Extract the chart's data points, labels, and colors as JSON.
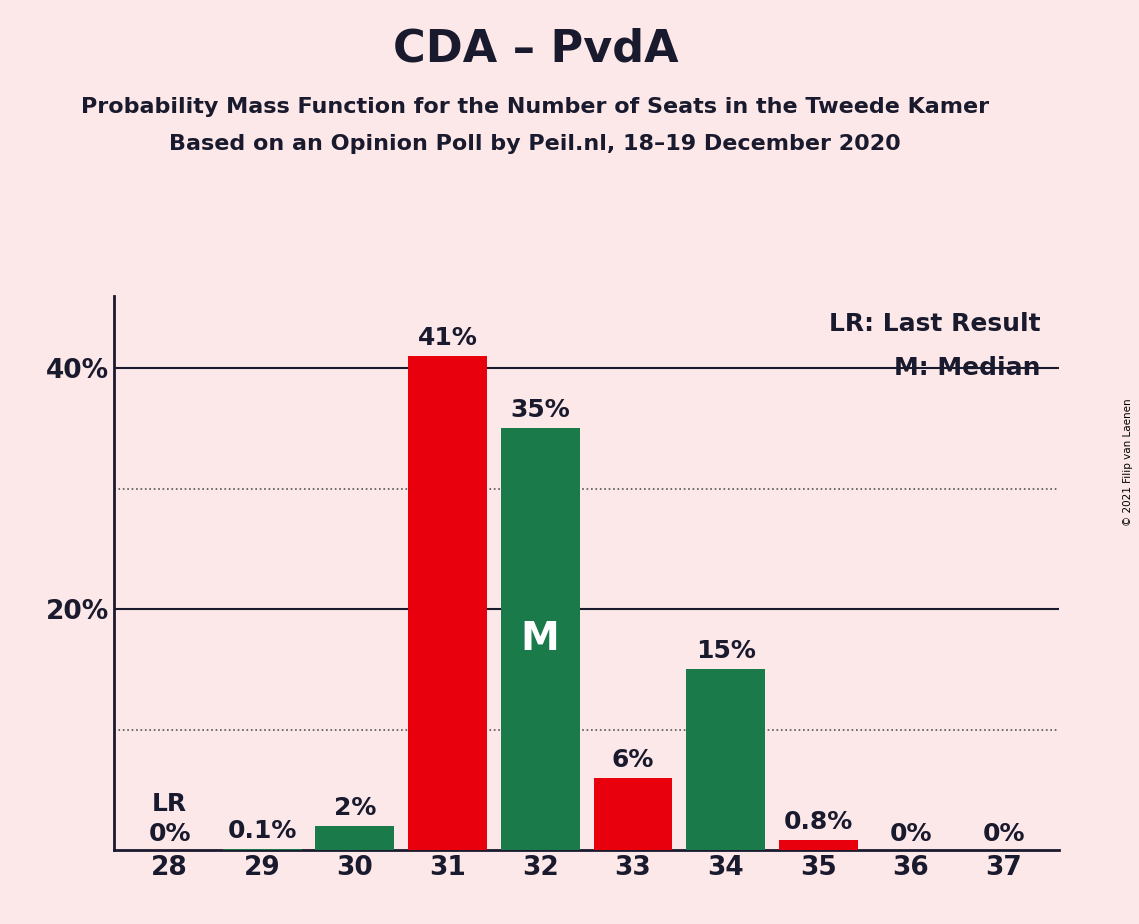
{
  "title": "CDA – PvdA",
  "subtitle1": "Probability Mass Function for the Number of Seats in the Tweede Kamer",
  "subtitle2": "Based on an Opinion Poll by Peil.nl, 18–19 December 2020",
  "copyright": "© 2021 Filip van Laenen",
  "seats": [
    28,
    29,
    30,
    31,
    32,
    33,
    34,
    35,
    36,
    37
  ],
  "cda_values": [
    0.0,
    0.0,
    0.0,
    41.0,
    0.0,
    6.0,
    0.0,
    0.8,
    0.0,
    0.0
  ],
  "pvda_values": [
    0.0,
    0.1,
    2.0,
    0.0,
    35.0,
    0.0,
    15.0,
    0.0,
    0.0,
    0.0
  ],
  "cda_labels": [
    "0%",
    "",
    "",
    "41%",
    "",
    "6%",
    "",
    "0.8%",
    "0%",
    "0%"
  ],
  "pvda_labels": [
    "",
    "0.1%",
    "2%",
    "",
    "35%",
    "",
    "15%",
    "",
    "",
    ""
  ],
  "lr_label_seat": 28,
  "lr_label_text": "LR",
  "lr_zero_label": "0%",
  "median_seat": 32,
  "median_label": "M",
  "color_cda": "#e8000d",
  "color_pvda": "#1a7a4a",
  "background_color": "#fce8e8",
  "ylim": [
    0,
    46
  ],
  "solid_gridlines": [
    20,
    40
  ],
  "dotted_gridlines": [
    10,
    30
  ],
  "ytick_positions": [
    20,
    40
  ],
  "ytick_labels": [
    "20%",
    "40%"
  ],
  "legend_lr": "LR: Last Result",
  "legend_m": "M: Median",
  "bar_width": 0.85,
  "title_fontsize": 32,
  "subtitle_fontsize": 16,
  "tick_fontsize": 19,
  "label_fontsize": 18,
  "legend_fontsize": 18,
  "color_dark": "#1a1a2e"
}
